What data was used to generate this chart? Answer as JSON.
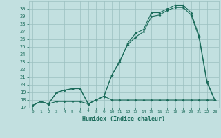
{
  "xlabel": "Humidex (Indice chaleur)",
  "background_color": "#c2e0e0",
  "grid_color": "#9bbfbf",
  "line_color": "#1a6b5a",
  "xlim": [
    -0.5,
    23.5
  ],
  "ylim": [
    17,
    31
  ],
  "xticks": [
    0,
    1,
    2,
    3,
    4,
    5,
    6,
    7,
    8,
    9,
    10,
    11,
    12,
    13,
    14,
    15,
    16,
    17,
    18,
    19,
    20,
    21,
    22,
    23
  ],
  "yticks": [
    17,
    18,
    19,
    20,
    21,
    22,
    23,
    24,
    25,
    26,
    27,
    28,
    29,
    30
  ],
  "series1_x": [
    0,
    1,
    2,
    3,
    4,
    5,
    6,
    7,
    8,
    9,
    10,
    11,
    12,
    13,
    14,
    15,
    16,
    17,
    18,
    19,
    20,
    21,
    22,
    23
  ],
  "series1_y": [
    17.3,
    17.8,
    17.5,
    17.8,
    17.8,
    17.8,
    17.8,
    17.5,
    18.0,
    18.5,
    18.0,
    18.0,
    18.0,
    18.0,
    18.0,
    18.0,
    18.0,
    18.0,
    18.0,
    18.0,
    18.0,
    18.0,
    18.0,
    18.0
  ],
  "series2_x": [
    0,
    1,
    2,
    3,
    4,
    5,
    6,
    7,
    8,
    9,
    10,
    11,
    12,
    13,
    14,
    15,
    16,
    17,
    18,
    19,
    20,
    21,
    22,
    23
  ],
  "series2_y": [
    17.3,
    17.8,
    17.5,
    19.0,
    19.3,
    19.5,
    19.5,
    17.5,
    18.0,
    18.5,
    21.3,
    23.2,
    25.3,
    26.3,
    27.0,
    29.0,
    29.2,
    29.8,
    30.2,
    30.2,
    29.2,
    26.3,
    20.3,
    18.0
  ],
  "series3_x": [
    0,
    1,
    2,
    3,
    4,
    5,
    6,
    7,
    8,
    9,
    10,
    11,
    12,
    13,
    14,
    15,
    16,
    17,
    18,
    19,
    20,
    21,
    22,
    23
  ],
  "series3_y": [
    17.3,
    17.8,
    17.5,
    19.0,
    19.3,
    19.5,
    19.5,
    17.5,
    18.0,
    18.5,
    21.3,
    23.0,
    25.5,
    26.8,
    27.3,
    29.5,
    29.5,
    30.0,
    30.5,
    30.5,
    29.5,
    26.5,
    20.5,
    18.0
  ]
}
